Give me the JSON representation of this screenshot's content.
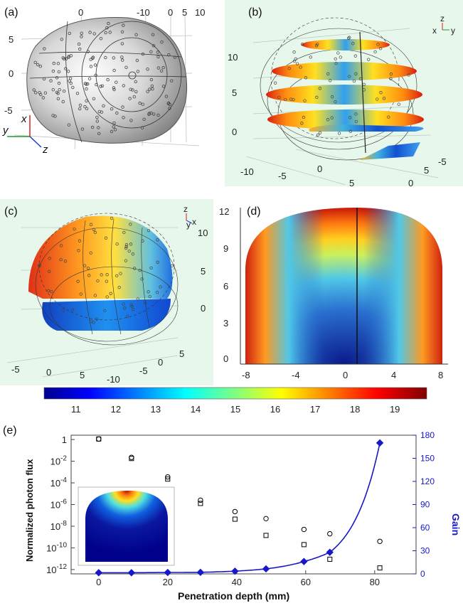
{
  "figure": {
    "panel_labels": [
      "(a)",
      "(b)",
      "(c)",
      "(d)",
      "(e)"
    ],
    "panel_a": {
      "top_ticks": [
        "0",
        "-10",
        "0",
        "5",
        "10"
      ],
      "left_ticks": [
        "5",
        "0",
        "-5"
      ],
      "axis_x": "x",
      "axis_y": "y",
      "axis_z": "z"
    },
    "panel_b": {
      "left_ticks": [
        "10",
        "5",
        "0"
      ],
      "bottom_ticks": [
        "-10",
        "-5",
        "0",
        "5",
        "0",
        "5",
        "-5"
      ],
      "triad": [
        "z",
        "x",
        "y"
      ]
    },
    "panel_c": {
      "right_ticks": [
        "10",
        "5",
        "0"
      ],
      "bottom_ticks": [
        "-5",
        "0",
        "5",
        "-10",
        "-5",
        "0",
        "5"
      ],
      "triad": [
        "z",
        "y",
        "x"
      ]
    },
    "panel_d": {
      "y_ticks": [
        "12",
        "9",
        "6",
        "3",
        "0"
      ],
      "x_ticks": [
        "-8",
        "-4",
        "0",
        "4",
        "8"
      ]
    },
    "colorbar": {
      "ticks": [
        "11",
        "12",
        "13",
        "14",
        "15",
        "16",
        "17",
        "18",
        "19"
      ],
      "range": [
        10.2,
        19.8
      ]
    }
  },
  "chart_data": {
    "type": "scatter",
    "xlabel": "Penetration depth (mm)",
    "ylabel": "Normalized photon flux",
    "y2label": "Gain",
    "xlim": [
      -8,
      92
    ],
    "ylim_log10": [
      -12.4,
      0.4
    ],
    "y2lim": [
      0,
      180
    ],
    "x_ticks": [
      "0",
      "20",
      "40",
      "60",
      "80"
    ],
    "y_ticks": [
      "1",
      "10-2",
      "10-4",
      "10-6",
      "10-8",
      "10-10",
      "10-12"
    ],
    "y_tick_exponents": [
      0,
      -2,
      -4,
      -6,
      -8,
      -10,
      -12
    ],
    "y2_ticks": [
      "0",
      "30",
      "60",
      "90",
      "120",
      "150",
      "180"
    ],
    "series": [
      {
        "marker": "square",
        "x": [
          0,
          9.5,
          20,
          29.5,
          39.5,
          48.5,
          59.5,
          67,
          81.5
        ],
        "log10_y": [
          0.05,
          -1.75,
          -3.65,
          -5.9,
          -7.35,
          -8.85,
          -9.7,
          -11.05,
          -11.85
        ]
      },
      {
        "marker": "circle",
        "x": [
          0,
          9.5,
          20,
          29.5,
          39.5,
          48.5,
          59.5,
          67,
          81.5
        ],
        "log10_y": [
          0.05,
          -1.65,
          -3.45,
          -5.6,
          -6.65,
          -7.3,
          -8.3,
          -8.7,
          -9.4
        ]
      },
      {
        "marker": "diamond",
        "axis": "right",
        "x": [
          0,
          9.5,
          20,
          29.5,
          39.5,
          48.5,
          59.5,
          67,
          81.5
        ],
        "y": [
          1.5,
          1.5,
          1.8,
          2.0,
          3.5,
          6.5,
          16,
          28,
          170
        ]
      }
    ],
    "colors": {
      "gain": "#1818c8",
      "markers": "#000000"
    }
  }
}
